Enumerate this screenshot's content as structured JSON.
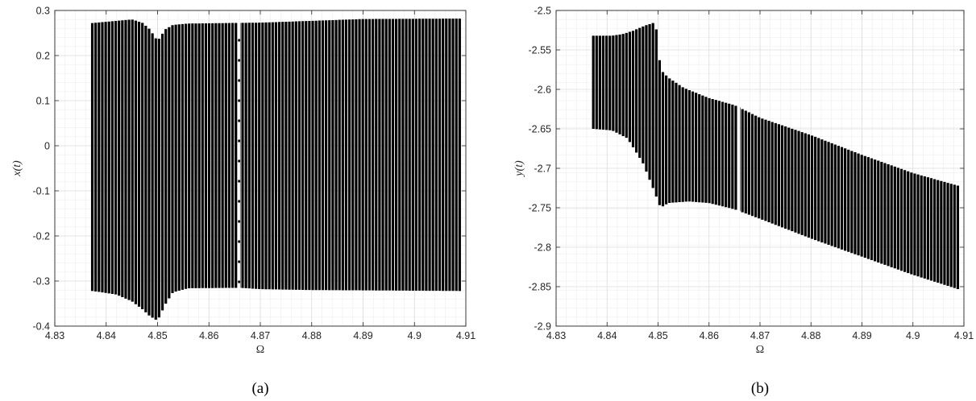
{
  "chart_data": [
    {
      "type": "bifurcation",
      "panel_label": "(a)",
      "title": "",
      "xlabel": "Ω",
      "ylabel": "x(t)",
      "xlim": [
        4.83,
        4.91
      ],
      "ylim": [
        -0.4,
        0.3
      ],
      "xticks": [
        4.83,
        4.84,
        4.85,
        4.86,
        4.87,
        4.88,
        4.89,
        4.9,
        4.91
      ],
      "yticks": [
        -0.4,
        -0.3,
        -0.2,
        -0.1,
        0,
        0.1,
        0.2,
        0.3
      ],
      "xtick_labels": [
        "4.83",
        "4.84",
        "4.85",
        "4.86",
        "4.87",
        "4.88",
        "4.89",
        "4.9",
        "4.91"
      ],
      "ytick_labels": [
        "-0.4",
        "-0.3",
        "-0.2",
        "-0.1",
        "0",
        "0.1",
        "0.2",
        "0.3"
      ],
      "grid": true,
      "x_start": 4.8373,
      "x_end": 4.9088,
      "x_step": 0.00065,
      "color": "#000000",
      "gap_x": 4.8658,
      "max_envelope": [
        [
          4.8373,
          0.272
        ],
        [
          4.842,
          0.277
        ],
        [
          4.845,
          0.28
        ],
        [
          4.847,
          0.273
        ],
        [
          4.8485,
          0.258
        ],
        [
          4.85,
          0.232
        ],
        [
          4.8515,
          0.258
        ],
        [
          4.853,
          0.268
        ],
        [
          4.856,
          0.271
        ],
        [
          4.87,
          0.273
        ],
        [
          4.89,
          0.281
        ],
        [
          4.9088,
          0.282
        ]
      ],
      "min_envelope": [
        [
          4.8373,
          -0.322
        ],
        [
          4.842,
          -0.33
        ],
        [
          4.845,
          -0.345
        ],
        [
          4.847,
          -0.362
        ],
        [
          4.8485,
          -0.378
        ],
        [
          4.85,
          -0.388
        ],
        [
          4.8515,
          -0.352
        ],
        [
          4.853,
          -0.325
        ],
        [
          4.856,
          -0.316
        ],
        [
          4.866,
          -0.315
        ],
        [
          4.87,
          -0.318
        ],
        [
          4.88,
          -0.32
        ],
        [
          4.9088,
          -0.322
        ]
      ]
    },
    {
      "type": "bifurcation",
      "panel_label": "(b)",
      "title": "",
      "xlabel": "Ω",
      "ylabel": "y(t)",
      "xlim": [
        4.83,
        4.91
      ],
      "ylim": [
        -2.9,
        -2.5
      ],
      "xticks": [
        4.83,
        4.84,
        4.85,
        4.86,
        4.87,
        4.88,
        4.89,
        4.9,
        4.91
      ],
      "yticks": [
        -2.9,
        -2.85,
        -2.8,
        -2.75,
        -2.7,
        -2.65,
        -2.6,
        -2.55,
        -2.5
      ],
      "xtick_labels": [
        "4.83",
        "4.84",
        "4.85",
        "4.86",
        "4.87",
        "4.88",
        "4.89",
        "4.9",
        "4.91"
      ],
      "ytick_labels": [
        "-2.9",
        "-2.85",
        "-2.8",
        "-2.75",
        "-2.7",
        "-2.65",
        "-2.6",
        "-2.55",
        "-2.5"
      ],
      "grid": true,
      "x_start": 4.8373,
      "x_end": 4.9088,
      "x_step": 0.00065,
      "color": "#000000",
      "gap_x": 4.8658,
      "max_envelope": [
        [
          4.8373,
          -2.532
        ],
        [
          4.841,
          -2.532
        ],
        [
          4.843,
          -2.53
        ],
        [
          4.845,
          -2.526
        ],
        [
          4.8475,
          -2.519
        ],
        [
          4.8495,
          -2.515
        ],
        [
          4.8505,
          -2.575
        ],
        [
          4.852,
          -2.585
        ],
        [
          4.855,
          -2.598
        ],
        [
          4.86,
          -2.611
        ],
        [
          4.865,
          -2.62
        ],
        [
          4.87,
          -2.636
        ],
        [
          4.88,
          -2.658
        ],
        [
          4.89,
          -2.683
        ],
        [
          4.9,
          -2.706
        ],
        [
          4.9088,
          -2.722
        ]
      ],
      "min_envelope": [
        [
          4.8373,
          -2.65
        ],
        [
          4.841,
          -2.652
        ],
        [
          4.844,
          -2.662
        ],
        [
          4.847,
          -2.693
        ],
        [
          4.849,
          -2.725
        ],
        [
          4.8505,
          -2.75
        ],
        [
          4.852,
          -2.744
        ],
        [
          4.856,
          -2.742
        ],
        [
          4.86,
          -2.744
        ],
        [
          4.865,
          -2.752
        ],
        [
          4.87,
          -2.764
        ],
        [
          4.88,
          -2.789
        ],
        [
          4.89,
          -2.812
        ],
        [
          4.9,
          -2.835
        ],
        [
          4.9088,
          -2.853
        ]
      ]
    }
  ]
}
